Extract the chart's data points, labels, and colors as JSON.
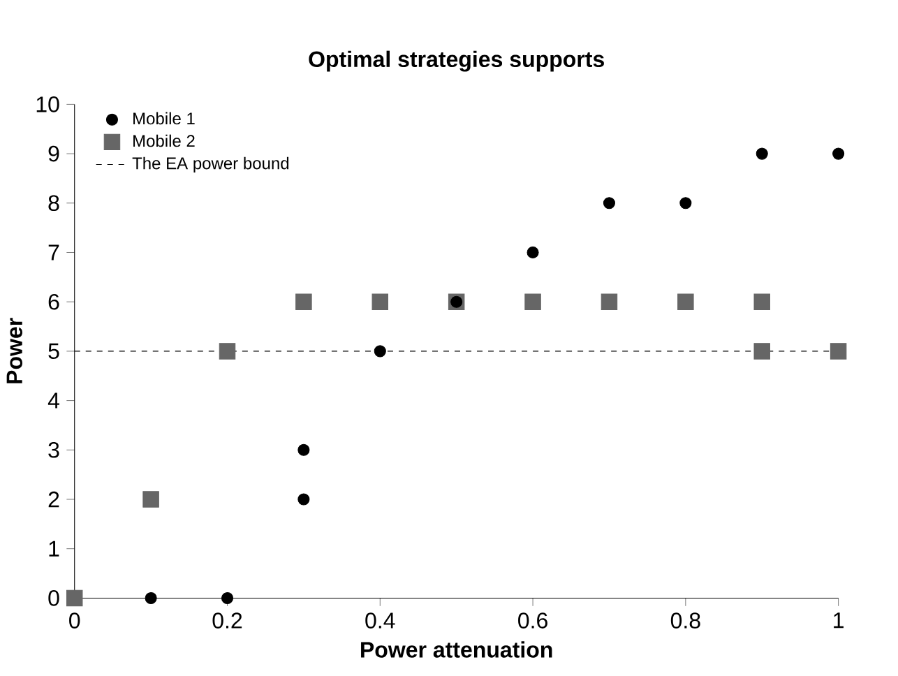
{
  "chart_data": {
    "type": "scatter",
    "title": "Optimal strategies supports",
    "xlabel": "Power attenuation",
    "ylabel": "Power",
    "xlim": [
      0,
      1
    ],
    "ylim": [
      0,
      10
    ],
    "xticks": [
      0,
      0.2,
      0.4,
      0.6,
      0.8,
      1
    ],
    "yticks": [
      0,
      1,
      2,
      3,
      4,
      5,
      6,
      7,
      8,
      9,
      10
    ],
    "series": [
      {
        "name": "Mobile 1",
        "color": "#000000",
        "marker": "circle",
        "x": [
          0.1,
          0.2,
          0.3,
          0.3,
          0.4,
          0.5,
          0.6,
          0.7,
          0.8,
          0.9,
          1
        ],
        "values": [
          0,
          0,
          3,
          2,
          5,
          6,
          7,
          8,
          8,
          9,
          9
        ]
      },
      {
        "name": "Mobile 2",
        "color": "#666666",
        "marker": "square",
        "x": [
          0,
          0.1,
          0.2,
          0.3,
          0.4,
          0.5,
          0.6,
          0.7,
          0.8,
          0.9,
          0.9,
          1
        ],
        "values": [
          0,
          2,
          5,
          6,
          6,
          6,
          6,
          6,
          6,
          6,
          5,
          5
        ]
      }
    ],
    "ref_lines": [
      {
        "axis": "y",
        "value": 5,
        "label": "The EA power bound",
        "color": "#000000",
        "line_style": "dashed"
      }
    ],
    "grid": false,
    "legend": "top left"
  }
}
